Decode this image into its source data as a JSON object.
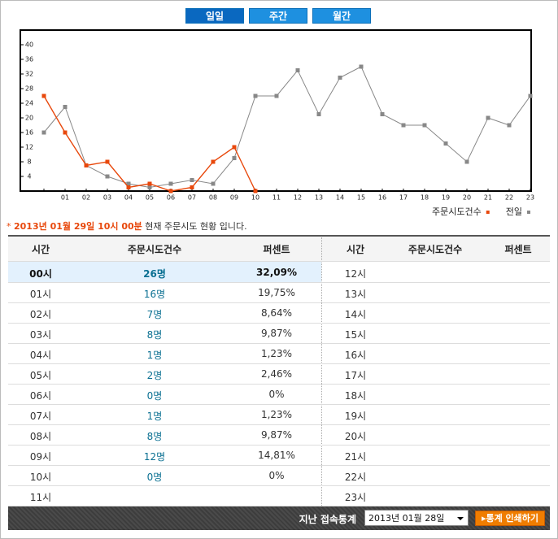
{
  "tabs": [
    "일일",
    "주간",
    "월간"
  ],
  "chart_data": {
    "type": "line",
    "categories": [
      null,
      "01",
      "02",
      "03",
      "04",
      "05",
      "06",
      "07",
      "08",
      "09",
      "10",
      "11",
      "12",
      "13",
      "14",
      "15",
      "16",
      "17",
      "18",
      "19",
      "20",
      "21",
      "22",
      "23"
    ],
    "series": [
      {
        "name": "주문시도건수",
        "color": "#e8480c",
        "values": [
          26,
          16,
          7,
          8,
          1,
          2,
          0,
          1,
          8,
          12,
          0,
          null,
          null,
          null,
          null,
          null,
          null,
          null,
          null,
          null,
          null,
          null,
          null,
          null
        ]
      },
      {
        "name": "전일",
        "color": "#888888",
        "values": [
          16,
          23,
          7,
          4,
          2,
          1,
          2,
          3,
          2,
          9,
          26,
          26,
          33,
          21,
          31,
          34,
          21,
          18,
          18,
          13,
          8,
          20,
          18,
          26
        ]
      }
    ],
    "ylim": [
      0,
      44
    ],
    "yticks": [
      4,
      8,
      12,
      16,
      20,
      24,
      28,
      32,
      36,
      40
    ],
    "legend": "bottom-right"
  },
  "note": {
    "prefix": "*",
    "date": "2013년 01월 29일 10시 00분",
    "suffix": "현재 주문시도 현황 입니다."
  },
  "table": {
    "headers": [
      "시간",
      "주문시도건수",
      "퍼센트"
    ],
    "left_rows": [
      [
        "00시",
        "26명",
        "32,09%"
      ],
      [
        "01시",
        "16명",
        "19,75%"
      ],
      [
        "02시",
        "7명",
        "8,64%"
      ],
      [
        "03시",
        "8명",
        "9,87%"
      ],
      [
        "04시",
        "1명",
        "1,23%"
      ],
      [
        "05시",
        "2명",
        "2,46%"
      ],
      [
        "06시",
        "0명",
        "0%"
      ],
      [
        "07시",
        "1명",
        "1,23%"
      ],
      [
        "08시",
        "8명",
        "9,87%"
      ],
      [
        "09시",
        "12명",
        "14,81%"
      ],
      [
        "10시",
        "0명",
        "0%"
      ],
      [
        "11시"
      ]
    ],
    "right_rows": [
      [
        "12시"
      ],
      [
        "13시"
      ],
      [
        "14시"
      ],
      [
        "15시"
      ],
      [
        "16시"
      ],
      [
        "17시"
      ],
      [
        "18시"
      ],
      [
        "19시"
      ],
      [
        "20시"
      ],
      [
        "21시"
      ],
      [
        "22시"
      ],
      [
        "23시"
      ]
    ]
  },
  "footer": {
    "label": "지난 접속통계",
    "select": "2013년 01월 28일",
    "button": "통계 인쇄하기"
  }
}
